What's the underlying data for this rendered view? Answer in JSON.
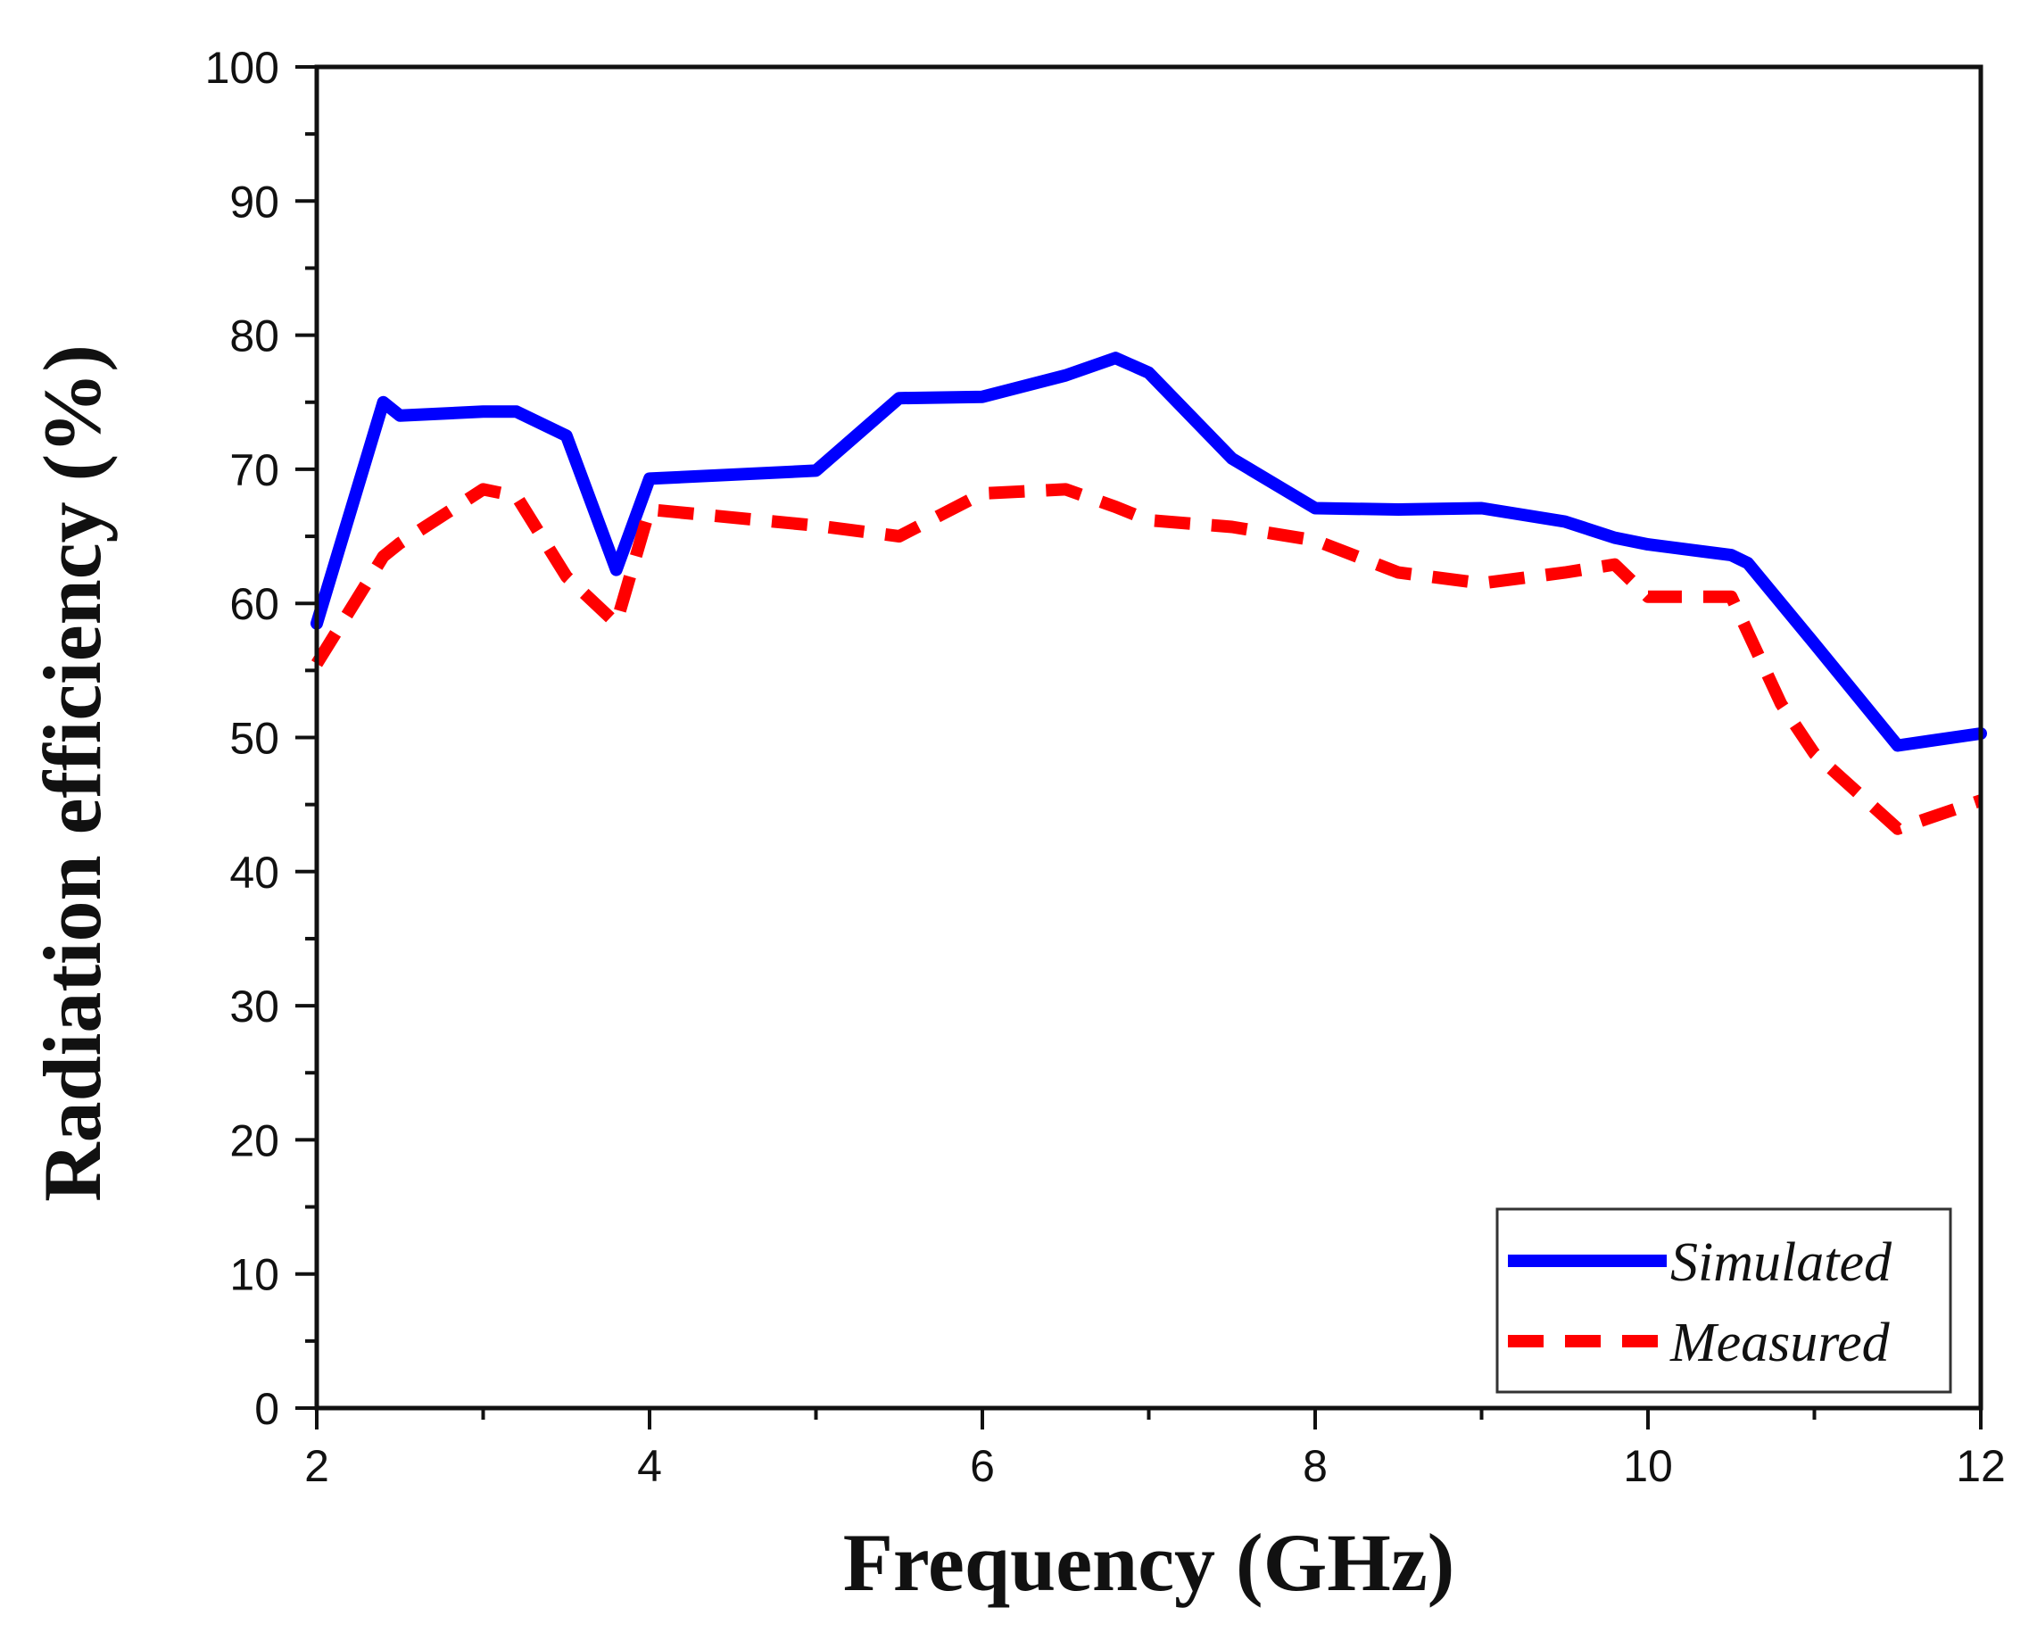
{
  "chart_data": {
    "type": "line",
    "title": "",
    "xlabel": "Frequency (GHz)",
    "ylabel": "Radiation efficiency (%)",
    "xlim": [
      2,
      12
    ],
    "ylim": [
      0,
      100
    ],
    "x_ticks": [
      2,
      4,
      6,
      8,
      10,
      12
    ],
    "x_tick_labels": [
      "2",
      "4",
      "6",
      "8",
      "10",
      "12"
    ],
    "y_ticks": [
      0,
      10,
      20,
      30,
      40,
      50,
      60,
      70,
      80,
      90,
      100
    ],
    "y_tick_labels": [
      "0",
      "10",
      "20",
      "30",
      "40",
      "50",
      "60",
      "70",
      "80",
      "90",
      "100"
    ],
    "grid": false,
    "legend_position": "bottom-right",
    "series": [
      {
        "name": "Simulated",
        "color": "#0000ff",
        "style": "solid",
        "x": [
          2.0,
          2.4,
          2.5,
          3.0,
          3.2,
          3.5,
          3.8,
          4.0,
          5.0,
          5.5,
          6.0,
          6.5,
          6.8,
          7.0,
          7.5,
          8.0,
          8.5,
          9.0,
          9.5,
          9.8,
          10.0,
          10.5,
          10.6,
          11.0,
          11.5,
          12.0
        ],
        "y": [
          58.5,
          75.0,
          74.0,
          74.3,
          74.3,
          72.5,
          62.5,
          69.3,
          69.9,
          75.3,
          75.4,
          77.0,
          78.3,
          77.2,
          70.8,
          67.1,
          67.0,
          67.1,
          66.1,
          64.9,
          64.4,
          63.6,
          63.0,
          57.0,
          49.4,
          50.3
        ]
      },
      {
        "name": "Measured",
        "color": "#ff0000",
        "style": "dashed",
        "x": [
          2.0,
          2.4,
          2.5,
          3.0,
          3.2,
          3.5,
          3.8,
          4.0,
          5.0,
          5.5,
          6.0,
          6.5,
          6.8,
          7.0,
          7.5,
          8.0,
          8.5,
          9.0,
          9.5,
          9.8,
          10.0,
          10.5,
          10.8,
          11.0,
          11.5,
          12.0
        ],
        "y": [
          55.5,
          63.5,
          64.5,
          68.5,
          68.0,
          62.0,
          58.5,
          67.0,
          65.8,
          65.0,
          68.2,
          68.5,
          67.2,
          66.2,
          65.7,
          64.7,
          62.3,
          61.5,
          62.3,
          62.9,
          60.5,
          60.5,
          52.5,
          48.8,
          43.2,
          45.3
        ]
      }
    ],
    "legend": [
      {
        "label": "Simulated",
        "color": "#0000ff",
        "style": "solid"
      },
      {
        "label": "Measured",
        "color": "#ff0000",
        "style": "dashed"
      }
    ]
  }
}
